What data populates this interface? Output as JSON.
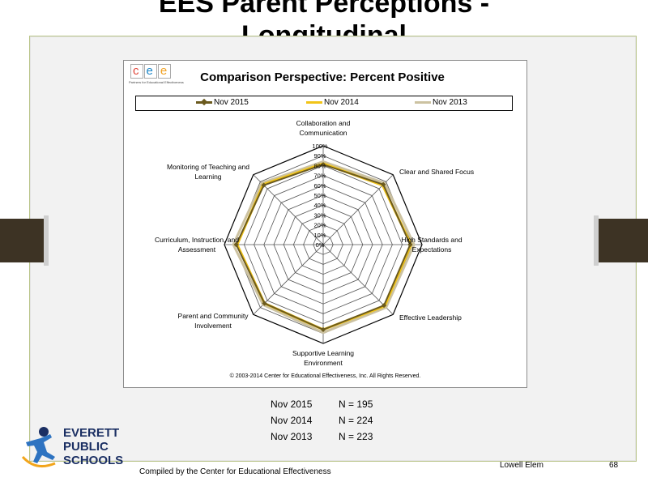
{
  "slide": {
    "title_line1": "EES Parent Perceptions -",
    "title_line2": "Longitudinal",
    "footer_left": "Compiled  by the Center  for Educational  Effectiveness",
    "footer_school": "Lowell Elem",
    "page_number": "68"
  },
  "logo": {
    "cee_letters": [
      "c",
      "e",
      "e"
    ],
    "cee_tagline": "Partners for Educational Effectiveness",
    "district_line1": "EVERETT",
    "district_line2": "PUBLIC",
    "district_line3": "SCHOOLS"
  },
  "respondents": [
    {
      "period": "Nov 2015",
      "n": "N = 195"
    },
    {
      "period": "Nov 2014",
      "n": "N = 224"
    },
    {
      "period": "Nov 2013",
      "n": "N = 223"
    }
  ],
  "chart_data": {
    "type": "radar",
    "title": "Comparison Perspective: Percent Positive",
    "copyright": "© 2003-2014 Center for Educational Effectiveness, Inc. All Rights Reserved.",
    "legend_position": "top",
    "axes": [
      "Collaboration and Communication",
      "Clear and Shared Focus",
      "High Standards and Expectations",
      "Effective Leadership",
      "Supportive Learning Environment",
      "Parent and Community Involvement",
      "Curriculum, Instruction, and Assessment",
      "Monitoring of Teaching and Learning"
    ],
    "axis_label_lines": [
      [
        "Collaboration and",
        "Communication"
      ],
      [
        "Clear and Shared Focus"
      ],
      [
        "High Standards and",
        "Expectations"
      ],
      [
        "Effective Leadership"
      ],
      [
        "Supportive Learning",
        "Environment"
      ],
      [
        "Parent and Community",
        "Involvement"
      ],
      [
        "Curriculum, Instruction, and",
        "Assessment"
      ],
      [
        "Monitoring of Teaching and",
        "Learning"
      ]
    ],
    "rticks": [
      "0%",
      "10%",
      "20%",
      "30%",
      "40%",
      "50%",
      "60%",
      "70%",
      "80%",
      "90%",
      "100%"
    ],
    "rlim": [
      0,
      100
    ],
    "series": [
      {
        "name": "Nov 2015",
        "color": "#6b5a1e",
        "values": [
          81,
          86,
          88,
          87,
          86,
          84,
          88,
          85
        ]
      },
      {
        "name": "Nov 2014",
        "color": "#f1c418",
        "values": [
          82,
          85,
          89,
          88,
          86,
          84,
          87,
          86
        ]
      },
      {
        "name": "Nov 2013",
        "color": "#ccc2a1",
        "values": [
          84,
          88,
          92,
          90,
          89,
          86,
          91,
          88
        ]
      }
    ]
  }
}
